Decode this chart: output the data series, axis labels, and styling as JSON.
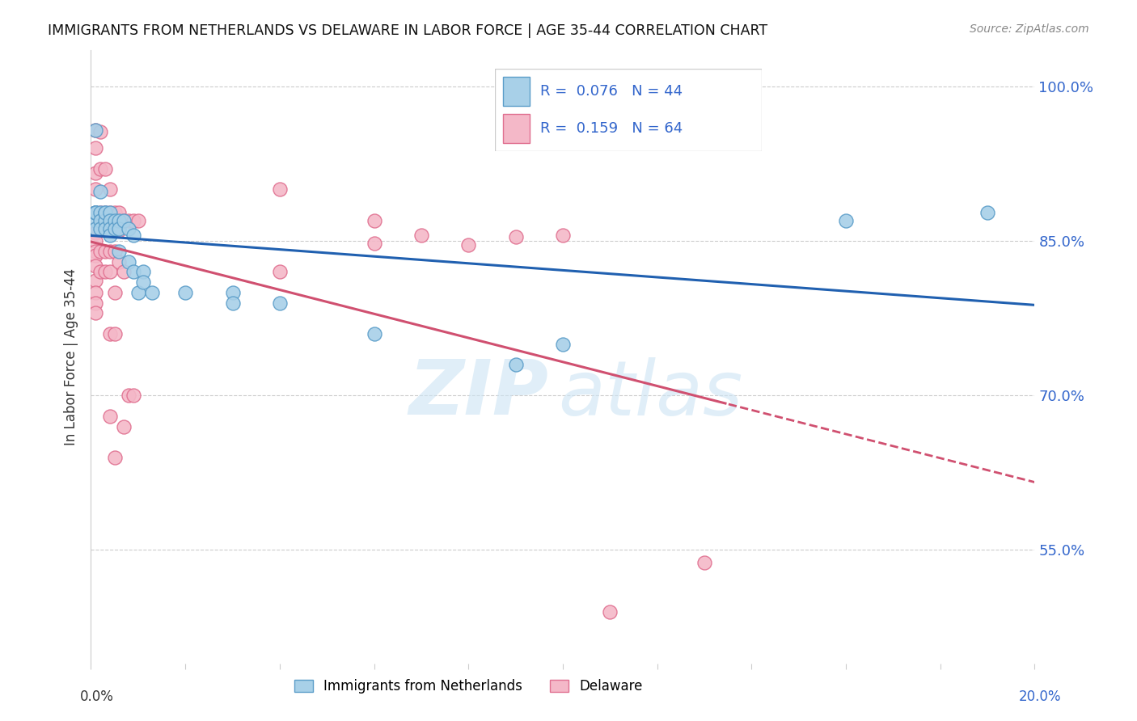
{
  "title": "IMMIGRANTS FROM NETHERLANDS VS DELAWARE IN LABOR FORCE | AGE 35-44 CORRELATION CHART",
  "source": "Source: ZipAtlas.com",
  "ylabel": "In Labor Force | Age 35-44",
  "ytick_vals": [
    0.55,
    0.7,
    0.85,
    1.0
  ],
  "ytick_labels": [
    "55.0%",
    "70.0%",
    "85.0%",
    "100.0%"
  ],
  "blue_color": "#a8d0e8",
  "pink_color": "#f4b8c8",
  "blue_edge": "#5b9dc9",
  "pink_edge": "#e07090",
  "blue_line_color": "#2060b0",
  "pink_line_color": "#d05070",
  "xmin": 0.0,
  "xmax": 0.2,
  "ymin": 0.44,
  "ymax": 1.035,
  "blue_scatter": [
    [
      0.001,
      0.878
    ],
    [
      0.001,
      0.958
    ],
    [
      0.001,
      0.878
    ],
    [
      0.001,
      0.87
    ],
    [
      0.001,
      0.878
    ],
    [
      0.001,
      0.862
    ],
    [
      0.001,
      0.878
    ],
    [
      0.001,
      0.878
    ],
    [
      0.002,
      0.878
    ],
    [
      0.002,
      0.898
    ],
    [
      0.002,
      0.87
    ],
    [
      0.002,
      0.862
    ],
    [
      0.003,
      0.878
    ],
    [
      0.003,
      0.87
    ],
    [
      0.003,
      0.862
    ],
    [
      0.003,
      0.878
    ],
    [
      0.004,
      0.878
    ],
    [
      0.004,
      0.87
    ],
    [
      0.004,
      0.862
    ],
    [
      0.004,
      0.856
    ],
    [
      0.005,
      0.87
    ],
    [
      0.005,
      0.862
    ],
    [
      0.006,
      0.87
    ],
    [
      0.006,
      0.862
    ],
    [
      0.006,
      0.84
    ],
    [
      0.007,
      0.87
    ],
    [
      0.008,
      0.862
    ],
    [
      0.008,
      0.83
    ],
    [
      0.009,
      0.856
    ],
    [
      0.009,
      0.82
    ],
    [
      0.01,
      0.8
    ],
    [
      0.011,
      0.82
    ],
    [
      0.011,
      0.81
    ],
    [
      0.013,
      0.8
    ],
    [
      0.02,
      0.8
    ],
    [
      0.03,
      0.8
    ],
    [
      0.03,
      0.79
    ],
    [
      0.04,
      0.79
    ],
    [
      0.06,
      0.76
    ],
    [
      0.09,
      0.73
    ],
    [
      0.1,
      0.75
    ],
    [
      0.16,
      0.87
    ],
    [
      0.19,
      0.878
    ]
  ],
  "pink_scatter": [
    [
      0.001,
      0.958
    ],
    [
      0.001,
      0.94
    ],
    [
      0.001,
      0.916
    ],
    [
      0.001,
      0.9
    ],
    [
      0.001,
      0.878
    ],
    [
      0.001,
      0.862
    ],
    [
      0.001,
      0.862
    ],
    [
      0.001,
      0.858
    ],
    [
      0.001,
      0.85
    ],
    [
      0.001,
      0.84
    ],
    [
      0.001,
      0.836
    ],
    [
      0.001,
      0.826
    ],
    [
      0.001,
      0.812
    ],
    [
      0.001,
      0.8
    ],
    [
      0.001,
      0.79
    ],
    [
      0.001,
      0.78
    ],
    [
      0.002,
      0.956
    ],
    [
      0.002,
      0.92
    ],
    [
      0.002,
      0.878
    ],
    [
      0.002,
      0.87
    ],
    [
      0.002,
      0.862
    ],
    [
      0.002,
      0.84
    ],
    [
      0.002,
      0.82
    ],
    [
      0.003,
      0.92
    ],
    [
      0.003,
      0.878
    ],
    [
      0.003,
      0.87
    ],
    [
      0.003,
      0.86
    ],
    [
      0.003,
      0.84
    ],
    [
      0.003,
      0.82
    ],
    [
      0.004,
      0.9
    ],
    [
      0.004,
      0.878
    ],
    [
      0.004,
      0.862
    ],
    [
      0.004,
      0.84
    ],
    [
      0.004,
      0.82
    ],
    [
      0.004,
      0.76
    ],
    [
      0.004,
      0.68
    ],
    [
      0.005,
      0.878
    ],
    [
      0.005,
      0.86
    ],
    [
      0.005,
      0.84
    ],
    [
      0.005,
      0.8
    ],
    [
      0.005,
      0.76
    ],
    [
      0.005,
      0.64
    ],
    [
      0.006,
      0.878
    ],
    [
      0.006,
      0.86
    ],
    [
      0.006,
      0.83
    ],
    [
      0.007,
      0.87
    ],
    [
      0.007,
      0.82
    ],
    [
      0.007,
      0.67
    ],
    [
      0.008,
      0.87
    ],
    [
      0.008,
      0.7
    ],
    [
      0.009,
      0.87
    ],
    [
      0.009,
      0.7
    ],
    [
      0.01,
      0.87
    ],
    [
      0.04,
      0.9
    ],
    [
      0.04,
      0.82
    ],
    [
      0.06,
      0.87
    ],
    [
      0.06,
      0.848
    ],
    [
      0.07,
      0.856
    ],
    [
      0.08,
      0.846
    ],
    [
      0.09,
      0.854
    ],
    [
      0.1,
      0.856
    ],
    [
      0.11,
      0.49
    ],
    [
      0.13,
      0.538
    ]
  ]
}
